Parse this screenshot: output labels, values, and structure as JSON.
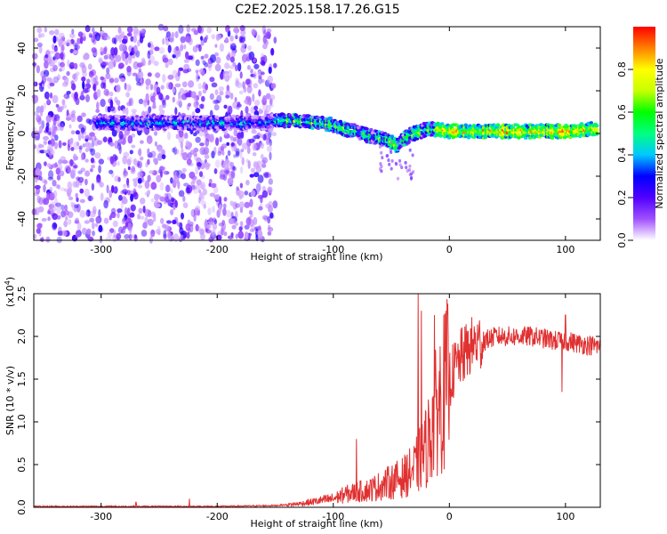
{
  "title": "C2E2.2025.158.17.26.G15",
  "chart_data": [
    {
      "type": "heatmap",
      "xlabel": "Height of straight line (km)",
      "ylabel": "Frequency (Hz)",
      "xlim": [
        -358,
        130
      ],
      "ylim": [
        -50,
        50
      ],
      "xticks": [
        -300,
        -200,
        -100,
        0,
        100
      ],
      "yticks": [
        -40,
        -20,
        0,
        20,
        40
      ],
      "colorbar": {
        "label": "Normalized spectral amplitude",
        "range": [
          0,
          1
        ],
        "ticks": [
          0.0,
          0.2,
          0.4,
          0.6,
          0.8
        ],
        "colors": [
          "#ffffff",
          "#a050ff",
          "#5000ff",
          "#0000ff",
          "#00c8ff",
          "#00ff80",
          "#00ff00",
          "#c8ff00",
          "#ffff00",
          "#ff8000",
          "#ff0000"
        ]
      },
      "ridge": {
        "x": [
          -305,
          -280,
          -260,
          -240,
          -220,
          -200,
          -180,
          -160,
          -150,
          -130,
          -110,
          -100,
          -90,
          -80,
          -70,
          -60,
          -50,
          -45,
          -40,
          -35,
          -30,
          -20,
          -10,
          0,
          20,
          40,
          60,
          80,
          100,
          120,
          130
        ],
        "y": [
          5,
          5,
          5,
          5,
          5,
          5,
          5,
          5,
          6,
          6,
          5,
          4,
          2,
          1,
          -1,
          -2,
          -4,
          -6,
          -3,
          -1,
          0,
          2,
          2,
          1,
          1,
          1,
          1,
          1,
          1,
          2,
          2
        ]
      }
    },
    {
      "type": "line",
      "xlabel": "Height of straight line (km)",
      "ylabel": "SNR (10 * v/v)",
      "yscale_note": "(x10",
      "yscale_exp": "4",
      "xlim": [
        -358,
        130
      ],
      "ylim": [
        0,
        2.5
      ],
      "xticks": [
        -300,
        -200,
        -100,
        0,
        100
      ],
      "yticks": [
        0.0,
        0.5,
        1.0,
        1.5,
        2.0,
        2.5
      ],
      "line_color": "#e03030",
      "trend": {
        "x": [
          -358,
          -250,
          -200,
          -150,
          -130,
          -110,
          -100,
          -90,
          -80,
          -70,
          -60,
          -50,
          -40,
          -30,
          -20,
          -10,
          0,
          10,
          20,
          30,
          40,
          50,
          60,
          70,
          80,
          90,
          100,
          110,
          120,
          130
        ],
        "y": [
          0.01,
          0.01,
          0.01,
          0.02,
          0.04,
          0.08,
          0.1,
          0.15,
          0.18,
          0.2,
          0.25,
          0.3,
          0.35,
          0.45,
          0.7,
          1.2,
          1.5,
          1.75,
          1.9,
          1.95,
          2.0,
          2.0,
          2.0,
          2.0,
          1.98,
          1.95,
          1.95,
          1.92,
          1.9,
          1.88
        ]
      },
      "spikes": [
        {
          "x": -27,
          "y": 2.5
        },
        {
          "x": -24,
          "y": 2.3
        },
        {
          "x": -13,
          "y": 2.25
        },
        {
          "x": -80,
          "y": 0.8
        },
        {
          "x": -224,
          "y": 0.1
        },
        {
          "x": -270,
          "y": 0.06
        },
        {
          "x": 97,
          "y": 1.35
        },
        {
          "x": 100,
          "y": 2.25
        }
      ]
    }
  ]
}
